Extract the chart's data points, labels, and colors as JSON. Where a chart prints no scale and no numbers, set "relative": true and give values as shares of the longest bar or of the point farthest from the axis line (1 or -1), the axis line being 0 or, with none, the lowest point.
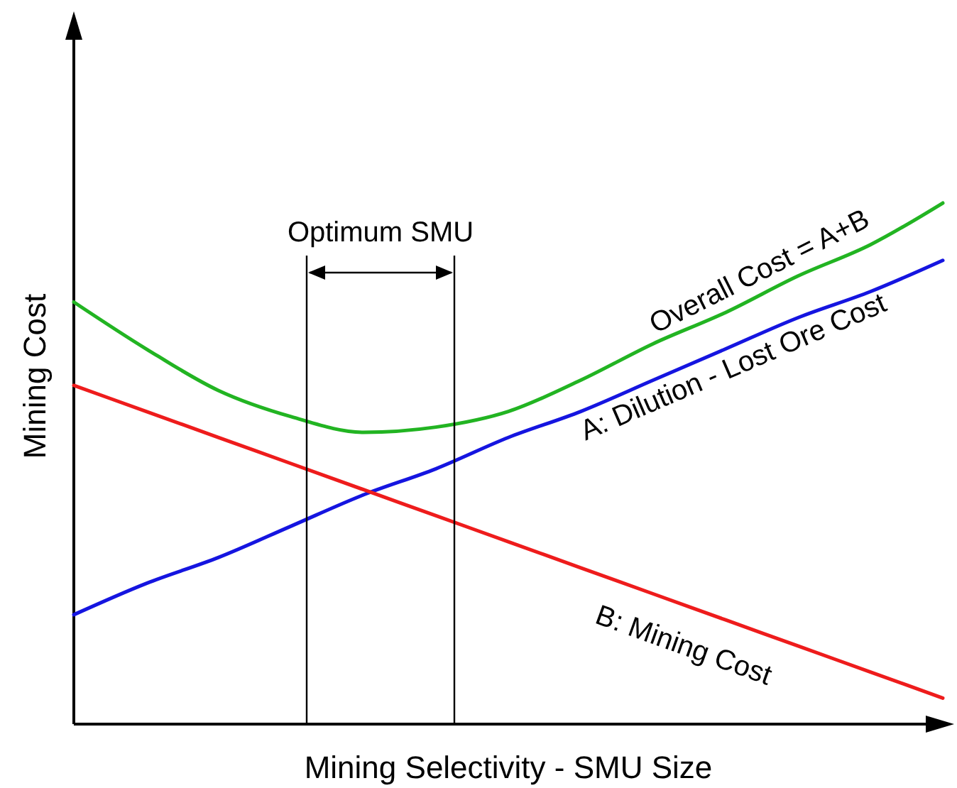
{
  "chart_data": {
    "type": "line",
    "relative": true,
    "xlabel": "Mining Selectivity - SMU Size",
    "ylabel": "Mining Cost",
    "annotations": [
      "Optimum SMU"
    ],
    "categories": [
      null,
      null,
      null,
      null,
      null,
      null,
      null,
      null,
      null,
      null,
      null,
      null,
      null
    ],
    "series": [
      {
        "name": "Overall Cost = A+B",
        "color": "#22b422",
        "values": [
          0.81,
          0.72,
          0.64,
          0.59,
          0.56,
          0.57,
          0.6,
          0.66,
          0.73,
          0.79,
          0.86,
          0.92,
          1
        ]
      },
      {
        "name": "A: Dilution - Lost Ore Cost",
        "color": "#1515e0",
        "values": [
          0.21,
          0.27,
          0.32,
          0.38,
          0.44,
          0.49,
          0.55,
          0.6,
          0.66,
          0.72,
          0.78,
          0.83,
          0.89
        ]
      },
      {
        "name": "B: Mining Cost",
        "color": "#ee1c1c",
        "values": [
          0.65,
          0.6,
          0.55,
          0.5,
          0.45,
          0.4,
          0.35,
          0.3,
          0.25,
          0.2,
          0.15,
          0.1,
          0.05
        ]
      }
    ],
    "marker": "none",
    "line_style": "solid"
  }
}
